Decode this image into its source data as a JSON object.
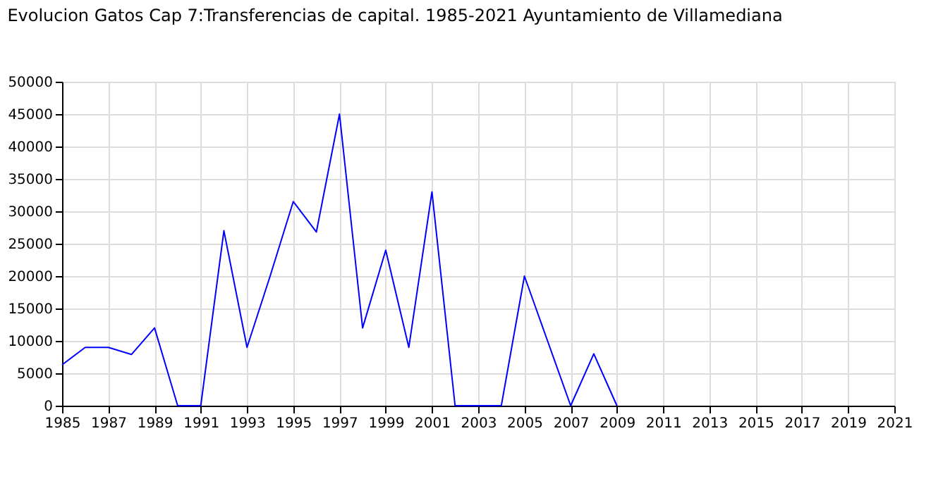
{
  "chart_data": {
    "type": "line",
    "title": "Evolucion Gatos Cap 7:Transferencias de capital. 1985-2021 Ayuntamiento de Villamediana",
    "x": [
      1985,
      1986,
      1987,
      1988,
      1989,
      1990,
      1991,
      1992,
      1993,
      1994,
      1995,
      1996,
      1997,
      1998,
      1999,
      2000,
      2001,
      2002,
      2003,
      2004,
      2005,
      2006,
      2007,
      2008,
      2009
    ],
    "series": [
      {
        "color": "#0000ff",
        "values": [
          6300,
          9000,
          9000,
          7900,
          12000,
          0,
          0,
          27000,
          9000,
          20000,
          31500,
          26800,
          45000,
          12000,
          24000,
          9000,
          33000,
          0,
          0,
          0,
          20000,
          10000,
          0,
          8000,
          0
        ]
      }
    ],
    "xlim": [
      1985,
      2021
    ],
    "xticks": [
      1985,
      1987,
      1989,
      1991,
      1993,
      1995,
      1997,
      1999,
      2001,
      2003,
      2005,
      2007,
      2009,
      2011,
      2013,
      2015,
      2017,
      2019,
      2021
    ],
    "ylim": [
      0,
      50000
    ],
    "yticks": [
      0,
      5000,
      10000,
      15000,
      20000,
      25000,
      30000,
      35000,
      40000,
      45000,
      50000
    ],
    "grid": true,
    "legend": false,
    "marker": "none",
    "line_style": "solid"
  }
}
